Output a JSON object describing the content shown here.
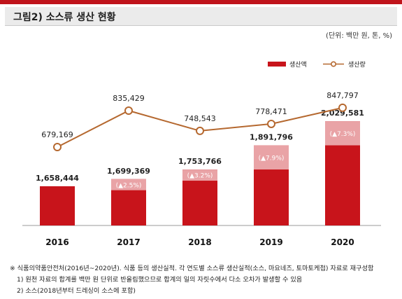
{
  "title": "그림2) 소스류 생산 현황",
  "unit_note": "(단위: 백만 원, 톤, %)",
  "colors": {
    "bar": "#c8141b",
    "bar_increment": "#e9a3a6",
    "line": "#b5682f",
    "accent": "#c0141b"
  },
  "chart_data": {
    "type": "bar",
    "categories": [
      "2016",
      "2017",
      "2018",
      "2019",
      "2020"
    ],
    "series": [
      {
        "name": "생산액",
        "type": "bar",
        "values": [
          1658444,
          1699369,
          1753766,
          1891796,
          2029581
        ],
        "value_labels": [
          "1,658,444",
          "1,699,369",
          "1,753,766",
          "1,891,796",
          "2,029,581"
        ],
        "growth_labels": [
          "",
          "(▲2.5%)",
          "(▲3.2%)",
          "(▲7.9%)",
          "(▲7.3%)"
        ]
      },
      {
        "name": "생산량",
        "type": "line",
        "values": [
          679169,
          835429,
          748543,
          778471,
          847797
        ],
        "value_labels": [
          "679,169",
          "835,429",
          "748,543",
          "778,471",
          "847,797"
        ]
      }
    ],
    "legend_position": "top-right",
    "grid": false
  },
  "footer": {
    "source": "※ 식품의약품안전처(2016년~2020년). 식품 등의 생산실적. 각 연도별 소스류 생산실적(소스, 마요네즈, 토마토케첩) 자료로 재구성함",
    "note1": "1) 원천 자료의 합계를 백만 원 단위로 반올림했으므로 합계의 일의 자릿수에서 다소 오차가 발생할 수 있음",
    "note2": "2) 소스(2018년부터 드레싱이 소스에 포함)"
  }
}
